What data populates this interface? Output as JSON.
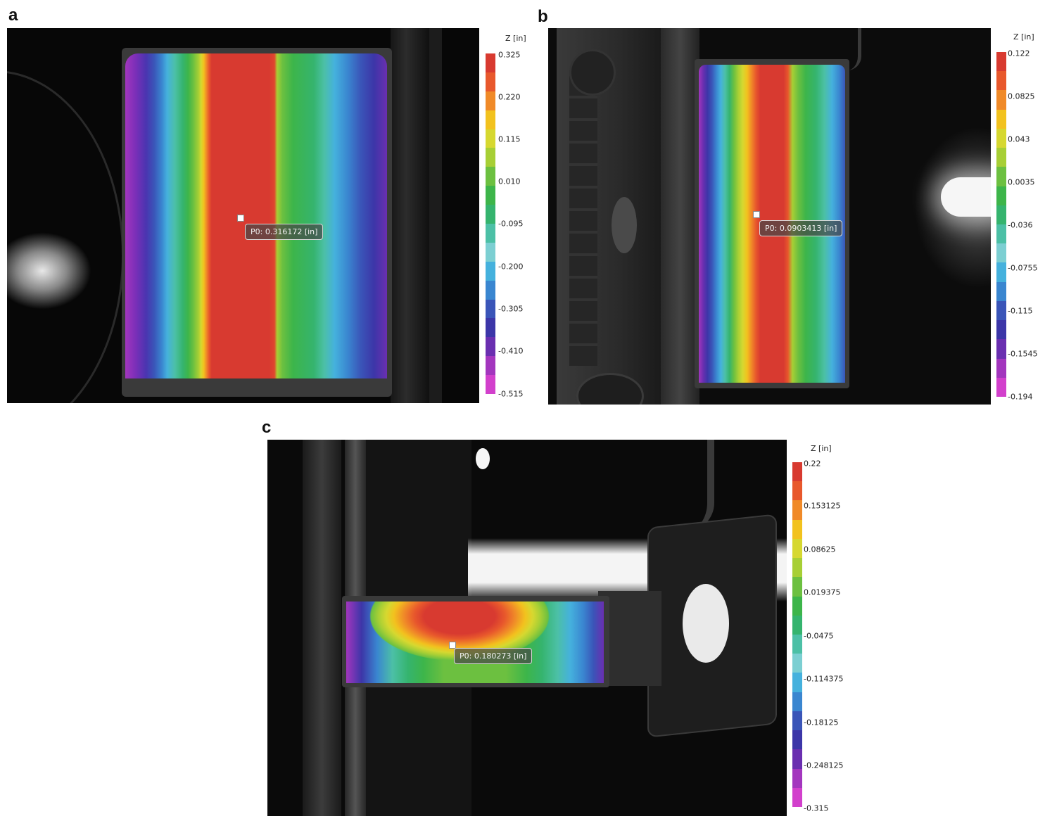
{
  "panels": {
    "a": {
      "letter": "a",
      "unit": "Z [in]",
      "ticks": [
        "0.325",
        "0.220",
        "0.115",
        "0.010",
        "-0.095",
        "-0.200",
        "-0.305",
        "-0.410",
        "-0.515"
      ],
      "probe": "P0: 0.316172 [in]"
    },
    "b": {
      "letter": "b",
      "unit": "Z [in]",
      "ticks": [
        "0.122",
        "0.0825",
        "0.043",
        "0.0035",
        "-0.036",
        "-0.0755",
        "-0.115",
        "-0.1545",
        "-0.194"
      ],
      "probe": "P0: 0.0903413 [in]"
    },
    "c": {
      "letter": "c",
      "unit": "Z [in]",
      "ticks": [
        "0.22",
        "0.153125",
        "0.08625",
        "0.019375",
        "-0.0475",
        "-0.114375",
        "-0.18125",
        "-0.248125",
        "-0.315"
      ],
      "probe": "P0: 0.180273 [in]"
    }
  },
  "colorbar_colors": [
    "#d83a30",
    "#e8582c",
    "#f08a28",
    "#f2c21e",
    "#d6d830",
    "#a7cf35",
    "#6cc040",
    "#3db54a",
    "#35b46e",
    "#4cc0a6",
    "#7ccfd2",
    "#45b1dd",
    "#3a86d0",
    "#3a55b8",
    "#3c36a8",
    "#6a2fb0",
    "#a336be",
    "#d240cc"
  ]
}
